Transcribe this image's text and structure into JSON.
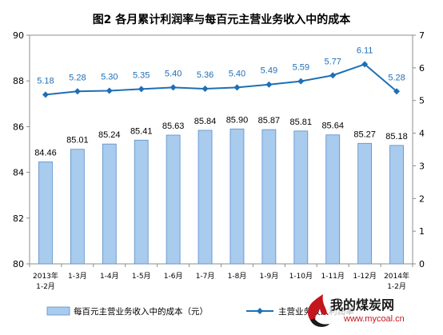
{
  "chart_data": {
    "type": "bar+line",
    "title": "图2  各月累计利润率与每百元主营业务收入中的成本",
    "categories": [
      [
        "2013年",
        "1-2月"
      ],
      [
        "1-3月"
      ],
      [
        "1-4月"
      ],
      [
        "1-5月"
      ],
      [
        "1-6月"
      ],
      [
        "1-7月"
      ],
      [
        "1-8月"
      ],
      [
        "1-9月"
      ],
      [
        "1-10月"
      ],
      [
        "1-11月"
      ],
      [
        "1-12月"
      ],
      [
        "2014年",
        "1-2月"
      ]
    ],
    "left_axis": {
      "ylim": [
        80,
        90
      ],
      "ticks": [
        "80",
        "82",
        "84",
        "86",
        "88",
        "90"
      ]
    },
    "right_axis": {
      "ylim": [
        0,
        7
      ],
      "ticks": [
        "0",
        "1",
        "2",
        "3",
        "4",
        "5",
        "6",
        "7"
      ]
    },
    "series": [
      {
        "name": "每百元主营业务收入中的成本（元）",
        "kind": "bar",
        "axis": "left",
        "color": "#a9cbed",
        "values": [
          84.46,
          85.01,
          85.24,
          85.41,
          85.63,
          85.84,
          85.9,
          85.87,
          85.81,
          85.64,
          85.27,
          85.18
        ],
        "labels": [
          "84.46",
          "85.01",
          "85.24",
          "85.41",
          "85.63",
          "85.84",
          "85.90",
          "85.87",
          "85.81",
          "85.64",
          "85.27",
          "85.18"
        ]
      },
      {
        "name": "主营业务收入利润率",
        "kind": "line",
        "axis": "right",
        "color": "#1f6fb5",
        "values": [
          5.18,
          5.28,
          5.3,
          5.35,
          5.4,
          5.36,
          5.4,
          5.49,
          5.59,
          5.77,
          6.11,
          5.28
        ],
        "labels": [
          "5.18",
          "5.28",
          "5.30",
          "5.35",
          "5.40",
          "5.36",
          "5.40",
          "5.49",
          "5.59",
          "5.77",
          "6.11",
          "5.28"
        ]
      }
    ],
    "legend_position": "bottom"
  },
  "watermark": {
    "text": "我的煤炭网",
    "url": "www.mycoal.cn",
    "colors": {
      "flame": "#c4161c",
      "text": "#1a1a1a"
    }
  }
}
